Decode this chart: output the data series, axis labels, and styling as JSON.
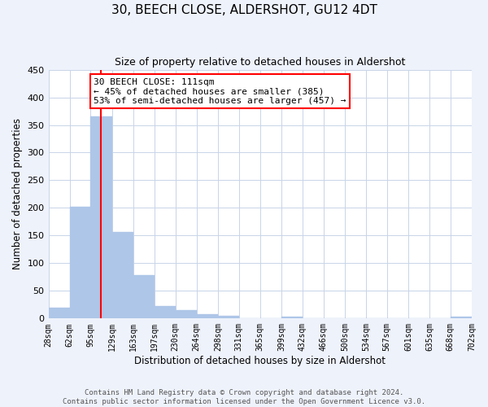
{
  "title": "30, BEECH CLOSE, ALDERSHOT, GU12 4DT",
  "subtitle": "Size of property relative to detached houses in Aldershot",
  "xlabel": "Distribution of detached houses by size in Aldershot",
  "ylabel": "Number of detached properties",
  "bar_edges": [
    28,
    62,
    95,
    129,
    163,
    197,
    230,
    264,
    298,
    331,
    365,
    399,
    432,
    466,
    500,
    534,
    567,
    601,
    635,
    668,
    702
  ],
  "bar_heights": [
    20,
    202,
    365,
    157,
    79,
    23,
    15,
    8,
    5,
    0,
    0,
    3,
    0,
    0,
    0,
    0,
    0,
    0,
    0,
    3
  ],
  "bar_color": "#aec6e8",
  "bar_edgecolor": "#aec6e8",
  "vline_x": 111,
  "vline_color": "red",
  "annotation_text": "30 BEECH CLOSE: 111sqm\n← 45% of detached houses are smaller (385)\n53% of semi-detached houses are larger (457) →",
  "annotation_boxcolor": "white",
  "annotation_boxedgecolor": "red",
  "ylim": [
    0,
    450
  ],
  "yticks": [
    0,
    50,
    100,
    150,
    200,
    250,
    300,
    350,
    400,
    450
  ],
  "tick_labels": [
    "28sqm",
    "62sqm",
    "95sqm",
    "129sqm",
    "163sqm",
    "197sqm",
    "230sqm",
    "264sqm",
    "298sqm",
    "331sqm",
    "365sqm",
    "399sqm",
    "432sqm",
    "466sqm",
    "500sqm",
    "534sqm",
    "567sqm",
    "601sqm",
    "635sqm",
    "668sqm",
    "702sqm"
  ],
  "footer_line1": "Contains HM Land Registry data © Crown copyright and database right 2024.",
  "footer_line2": "Contains public sector information licensed under the Open Government Licence v3.0.",
  "bg_color": "#eef2fb",
  "plot_bg_color": "#ffffff",
  "grid_color": "#c8d4e8"
}
